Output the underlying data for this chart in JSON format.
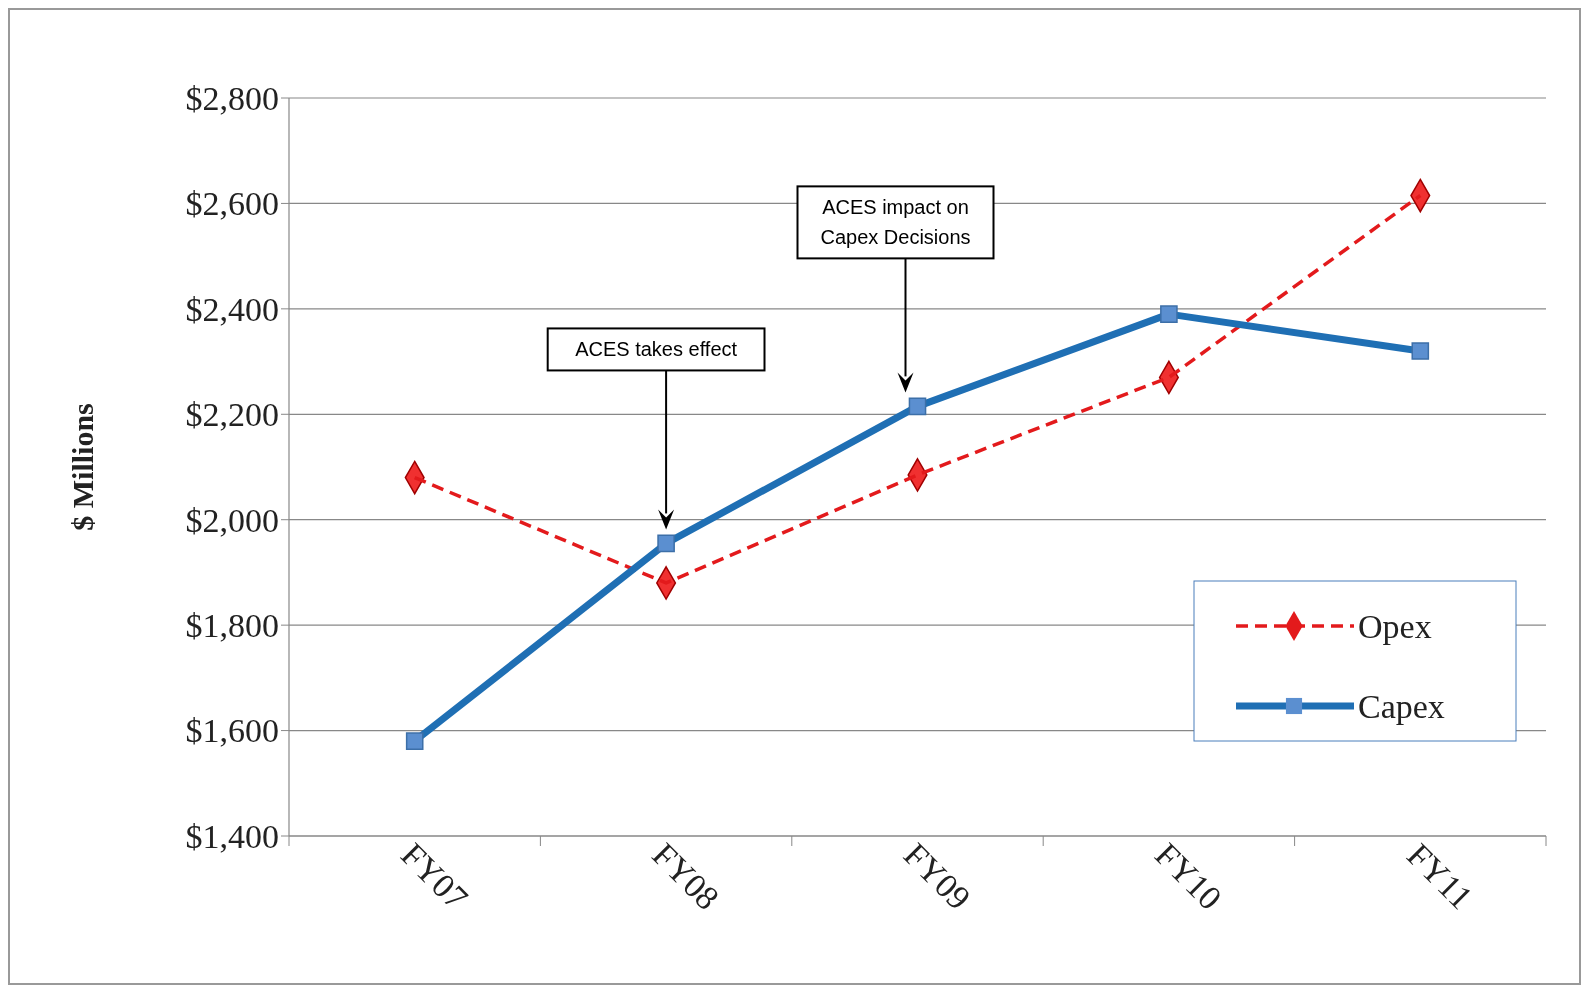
{
  "chart_data": {
    "type": "line",
    "ylabel": "$ Millions",
    "categories": [
      "FY07",
      "FY08",
      "FY09",
      "FY10",
      "FY11"
    ],
    "series": [
      {
        "name": "Opex",
        "color": "#e31a1c",
        "values": [
          2080,
          1880,
          2085,
          2270,
          2615
        ],
        "marker": "diamond",
        "line_style": "dashed"
      },
      {
        "name": "Capex",
        "color": "#1f6fb4",
        "values": [
          1580,
          1955,
          2215,
          2390,
          2320
        ],
        "marker": "square",
        "line_style": "solid"
      }
    ],
    "ylim": [
      1400,
      2800
    ],
    "yticks": [
      {
        "value": 1400,
        "label": "$1,400"
      },
      {
        "value": 1600,
        "label": "$1,600"
      },
      {
        "value": 1800,
        "label": "$1,800"
      },
      {
        "value": 2000,
        "label": "$2,000"
      },
      {
        "value": 2200,
        "label": "$2,200"
      },
      {
        "value": 2400,
        "label": "$2,400"
      },
      {
        "value": 2600,
        "label": "$2,600"
      },
      {
        "value": 2800,
        "label": "$2,800"
      }
    ],
    "grid": "y",
    "legend": "bottom right",
    "annotations": [
      "ACES takes effect",
      "ACES impact on Capex Decisions"
    ]
  }
}
